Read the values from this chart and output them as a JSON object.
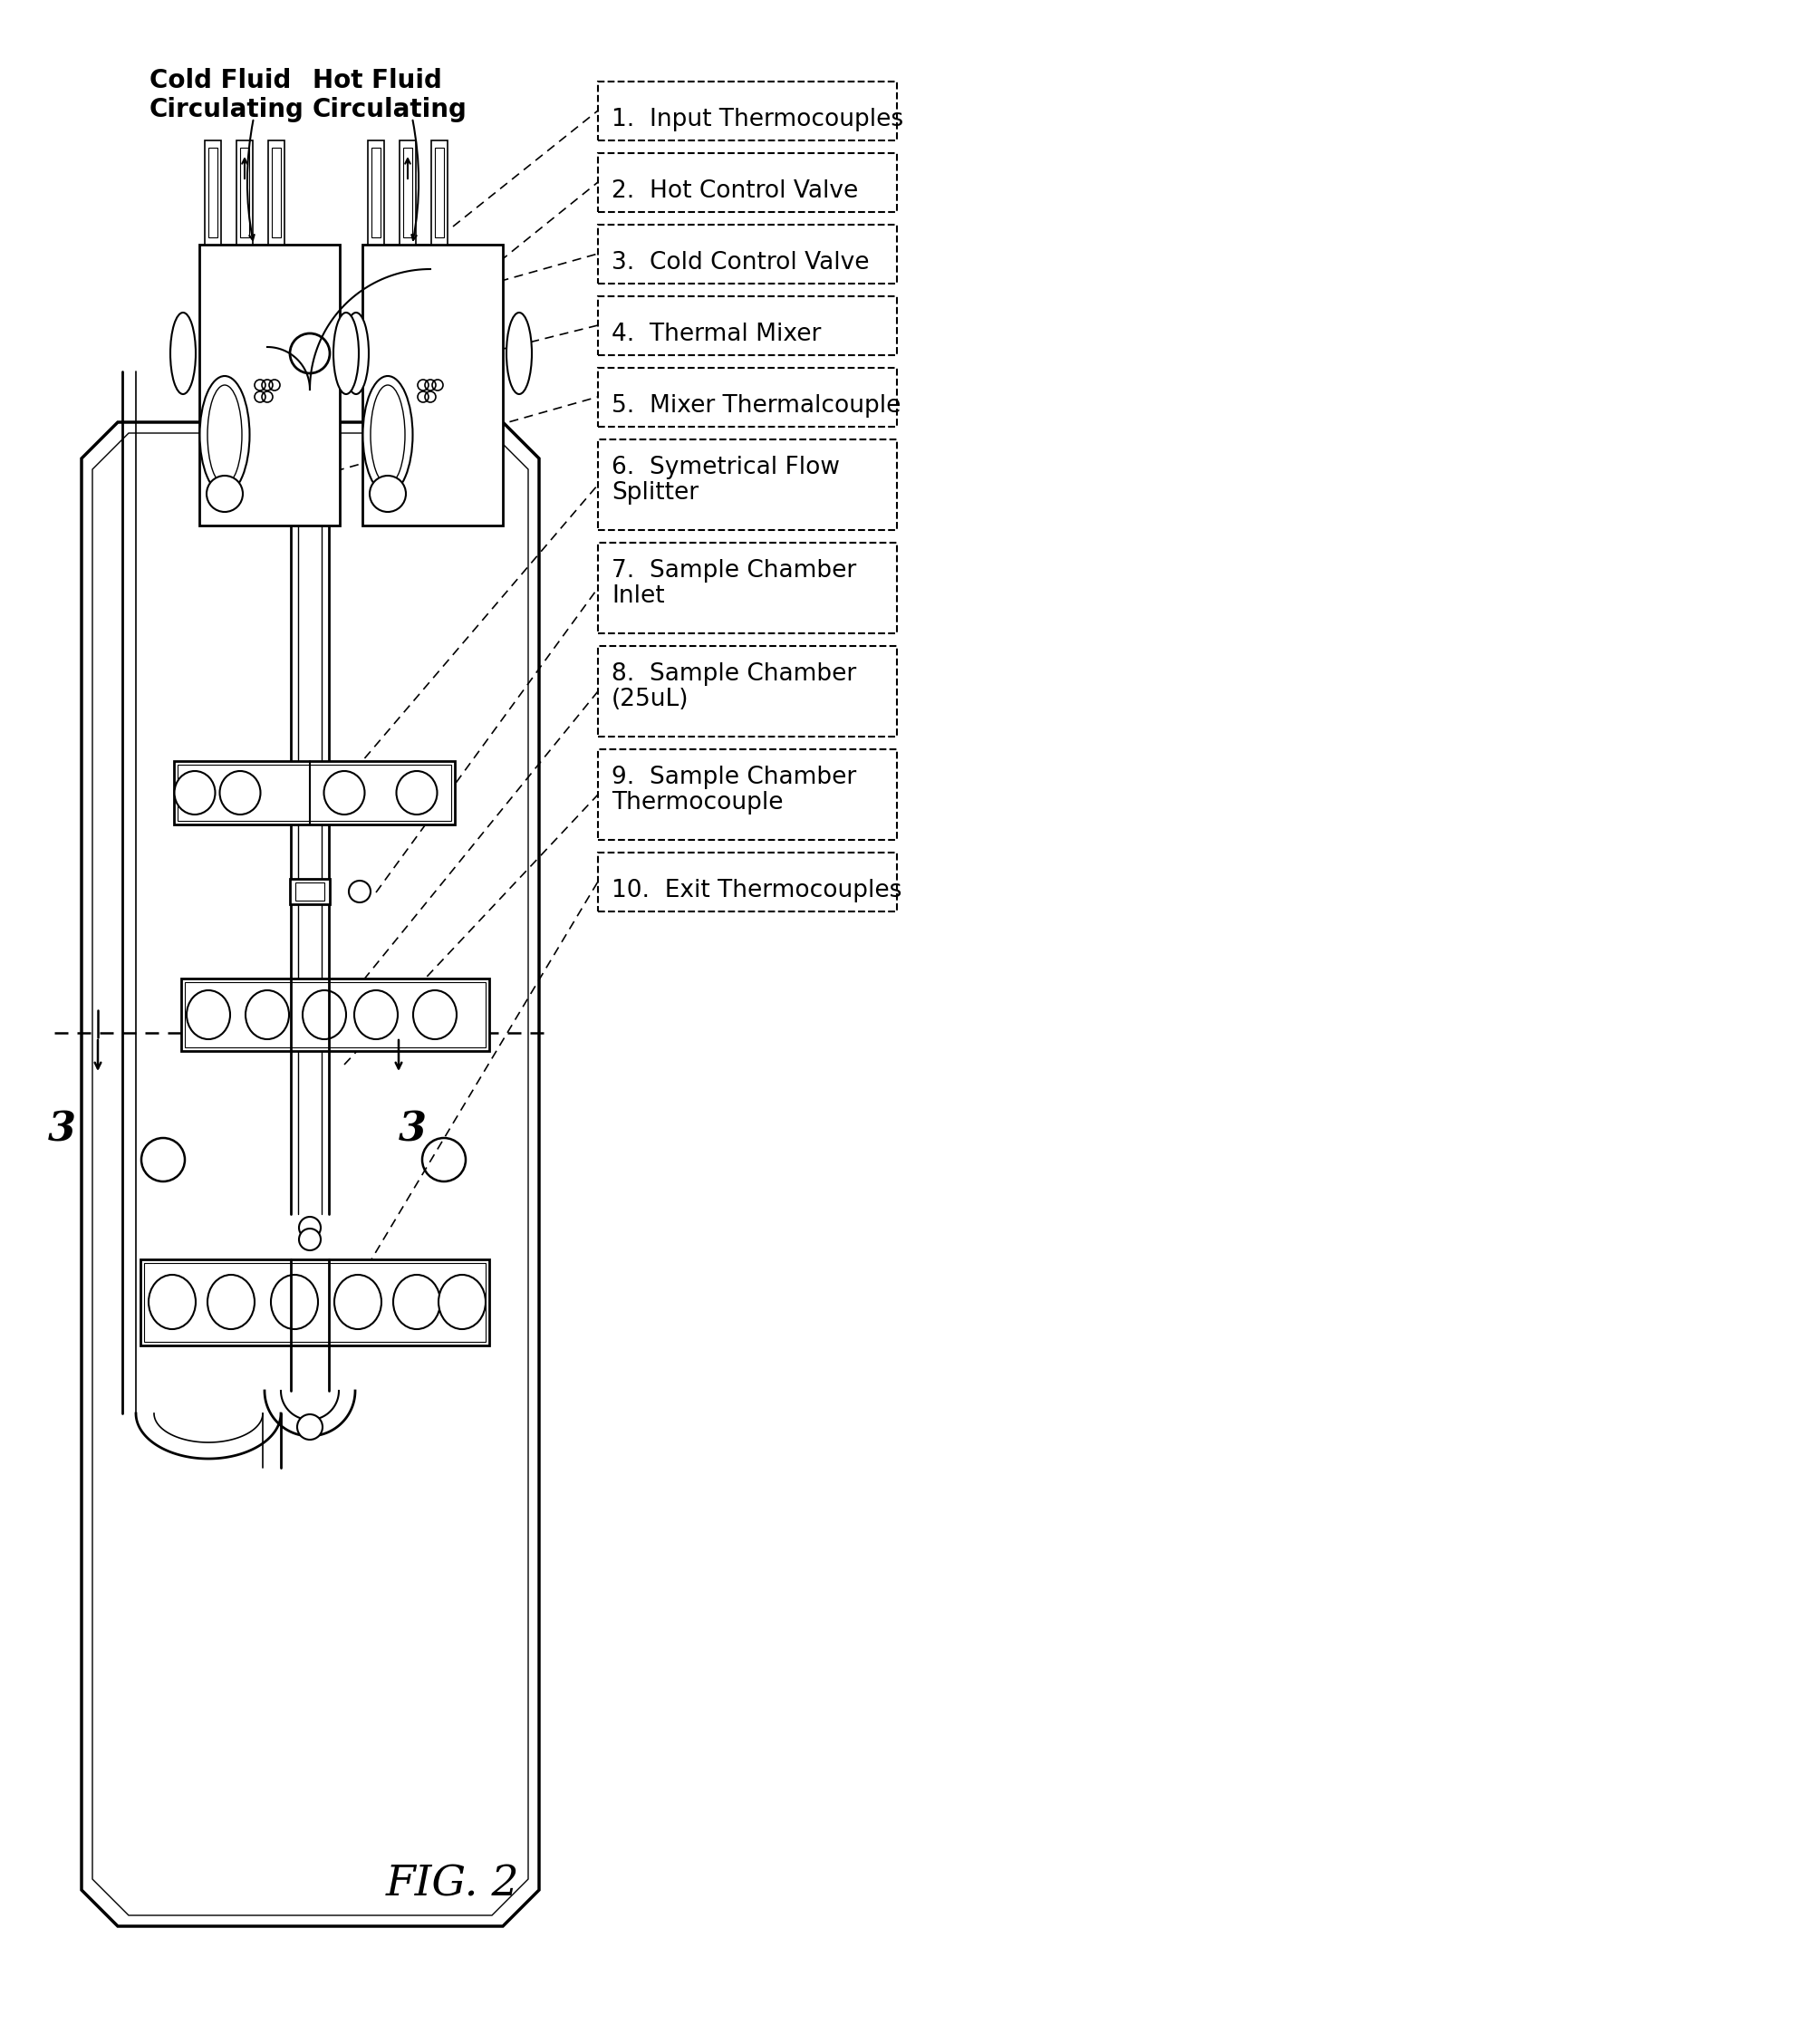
{
  "fig_label": "FIG. 2",
  "background_color": "#ffffff",
  "line_color": "#000000",
  "legend_items": [
    "1.  Input Thermocouples",
    "2.  Hot Control Valve",
    "3.  Cold Control Valve",
    "4.  Thermal Mixer",
    "5.  Mixer Thermalcouple",
    "6.  Symetrical Flow\n     Splitter",
    "7.  Sample Chamber\n     Inlet",
    "8.  Sample Chamber\n     (25uL)",
    "9.  Sample Chamber\n     Thermocouple",
    "10.  Exit Thermocouples"
  ],
  "label_cold_fluid": "Cold Fluid\nCirculating",
  "label_hot_fluid": "Hot Fluid\nCirculating",
  "section_label": "3"
}
